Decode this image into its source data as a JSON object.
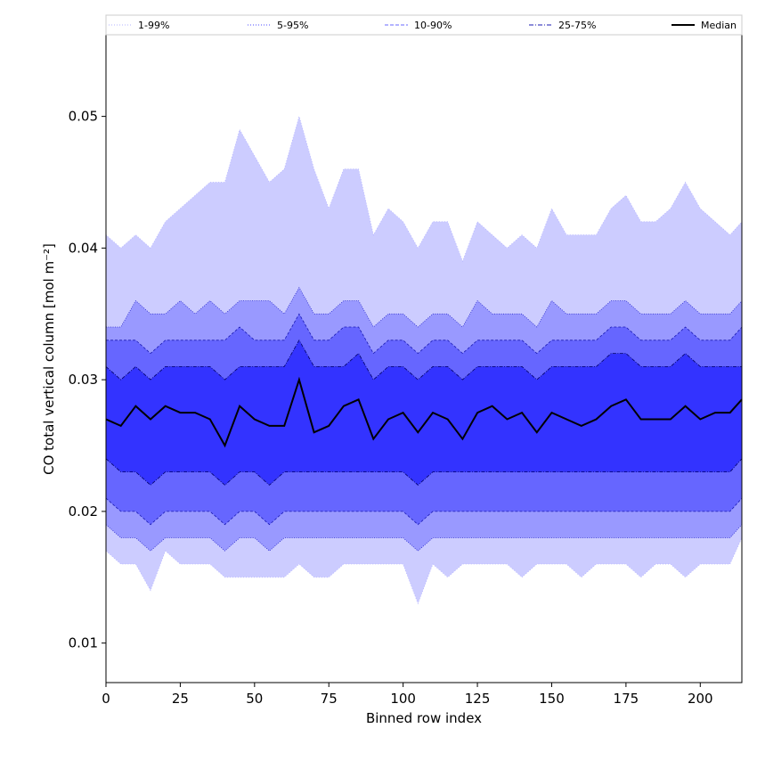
{
  "chart_data": {
    "type": "area",
    "title": "",
    "xlabel": "Binned row index",
    "ylabel": "CO total vertical column [mol m⁻²]",
    "xlim": [
      0,
      214
    ],
    "ylim": [
      0.007,
      0.0562
    ],
    "xticks": [
      0,
      25,
      50,
      75,
      100,
      125,
      150,
      175,
      200
    ],
    "yticks": [
      0.01,
      0.02,
      0.03,
      0.04,
      0.05
    ],
    "ytick_labels": [
      "0.01",
      "0.02",
      "0.03",
      "0.04",
      "0.05"
    ],
    "grid": false,
    "legend": {
      "placement": "top",
      "entries": [
        {
          "label": "1-99%",
          "style": "dotted",
          "color": "#b3b3ff"
        },
        {
          "label": "5-95%",
          "style": "dotted",
          "color": "#4d4dff"
        },
        {
          "label": "10-90%",
          "style": "dashed",
          "color": "#6a6aff"
        },
        {
          "label": "25-75%",
          "style": "dashdot",
          "color": "#1a1ab3"
        },
        {
          "label": "Median",
          "style": "solid",
          "color": "#000000"
        }
      ]
    },
    "colors": {
      "band_1_99": "#ccccff",
      "band_5_95": "#9999ff",
      "band_10_90": "#6666ff",
      "band_25_75": "#3333ff",
      "median": "#000000"
    },
    "x": [
      0,
      5,
      10,
      15,
      20,
      25,
      30,
      35,
      40,
      45,
      50,
      55,
      60,
      65,
      70,
      75,
      80,
      85,
      90,
      95,
      100,
      105,
      110,
      115,
      120,
      125,
      130,
      135,
      140,
      145,
      150,
      155,
      160,
      165,
      170,
      175,
      180,
      185,
      190,
      195,
      200,
      205,
      210,
      214
    ],
    "series": [
      {
        "name": "1-99%",
        "upper": [
          0.041,
          0.04,
          0.041,
          0.04,
          0.042,
          0.043,
          0.044,
          0.045,
          0.045,
          0.049,
          0.047,
          0.045,
          0.046,
          0.05,
          0.046,
          0.043,
          0.046,
          0.046,
          0.041,
          0.043,
          0.042,
          0.04,
          0.042,
          0.042,
          0.039,
          0.042,
          0.041,
          0.04,
          0.041,
          0.04,
          0.043,
          0.041,
          0.041,
          0.041,
          0.043,
          0.044,
          0.042,
          0.042,
          0.043,
          0.045,
          0.043,
          0.042,
          0.041,
          0.042
        ],
        "lower": [
          0.017,
          0.016,
          0.016,
          0.014,
          0.017,
          0.016,
          0.016,
          0.016,
          0.015,
          0.015,
          0.015,
          0.015,
          0.015,
          0.016,
          0.015,
          0.015,
          0.016,
          0.016,
          0.016,
          0.016,
          0.016,
          0.013,
          0.016,
          0.015,
          0.016,
          0.016,
          0.016,
          0.016,
          0.015,
          0.016,
          0.016,
          0.016,
          0.015,
          0.016,
          0.016,
          0.016,
          0.015,
          0.016,
          0.016,
          0.015,
          0.016,
          0.016,
          0.016,
          0.018
        ]
      },
      {
        "name": "5-95%",
        "upper": [
          0.034,
          0.034,
          0.036,
          0.035,
          0.035,
          0.036,
          0.035,
          0.036,
          0.035,
          0.036,
          0.036,
          0.036,
          0.035,
          0.037,
          0.035,
          0.035,
          0.036,
          0.036,
          0.034,
          0.035,
          0.035,
          0.034,
          0.035,
          0.035,
          0.034,
          0.036,
          0.035,
          0.035,
          0.035,
          0.034,
          0.036,
          0.035,
          0.035,
          0.035,
          0.036,
          0.036,
          0.035,
          0.035,
          0.035,
          0.036,
          0.035,
          0.035,
          0.035,
          0.036
        ],
        "lower": [
          0.019,
          0.018,
          0.018,
          0.017,
          0.018,
          0.018,
          0.018,
          0.018,
          0.017,
          0.018,
          0.018,
          0.017,
          0.018,
          0.018,
          0.018,
          0.018,
          0.018,
          0.018,
          0.018,
          0.018,
          0.018,
          0.017,
          0.018,
          0.018,
          0.018,
          0.018,
          0.018,
          0.018,
          0.018,
          0.018,
          0.018,
          0.018,
          0.018,
          0.018,
          0.018,
          0.018,
          0.018,
          0.018,
          0.018,
          0.018,
          0.018,
          0.018,
          0.018,
          0.019
        ]
      },
      {
        "name": "10-90%",
        "upper": [
          0.033,
          0.033,
          0.033,
          0.032,
          0.033,
          0.033,
          0.033,
          0.033,
          0.033,
          0.034,
          0.033,
          0.033,
          0.033,
          0.035,
          0.033,
          0.033,
          0.034,
          0.034,
          0.032,
          0.033,
          0.033,
          0.032,
          0.033,
          0.033,
          0.032,
          0.033,
          0.033,
          0.033,
          0.033,
          0.032,
          0.033,
          0.033,
          0.033,
          0.033,
          0.034,
          0.034,
          0.033,
          0.033,
          0.033,
          0.034,
          0.033,
          0.033,
          0.033,
          0.034
        ],
        "lower": [
          0.021,
          0.02,
          0.02,
          0.019,
          0.02,
          0.02,
          0.02,
          0.02,
          0.019,
          0.02,
          0.02,
          0.019,
          0.02,
          0.02,
          0.02,
          0.02,
          0.02,
          0.02,
          0.02,
          0.02,
          0.02,
          0.019,
          0.02,
          0.02,
          0.02,
          0.02,
          0.02,
          0.02,
          0.02,
          0.02,
          0.02,
          0.02,
          0.02,
          0.02,
          0.02,
          0.02,
          0.02,
          0.02,
          0.02,
          0.02,
          0.02,
          0.02,
          0.02,
          0.021
        ]
      },
      {
        "name": "25-75%",
        "upper": [
          0.031,
          0.03,
          0.031,
          0.03,
          0.031,
          0.031,
          0.031,
          0.031,
          0.03,
          0.031,
          0.031,
          0.031,
          0.031,
          0.033,
          0.031,
          0.031,
          0.031,
          0.032,
          0.03,
          0.031,
          0.031,
          0.03,
          0.031,
          0.031,
          0.03,
          0.031,
          0.031,
          0.031,
          0.031,
          0.03,
          0.031,
          0.031,
          0.031,
          0.031,
          0.032,
          0.032,
          0.031,
          0.031,
          0.031,
          0.032,
          0.031,
          0.031,
          0.031,
          0.031
        ],
        "lower": [
          0.024,
          0.023,
          0.023,
          0.022,
          0.023,
          0.023,
          0.023,
          0.023,
          0.022,
          0.023,
          0.023,
          0.022,
          0.023,
          0.023,
          0.023,
          0.023,
          0.023,
          0.023,
          0.023,
          0.023,
          0.023,
          0.022,
          0.023,
          0.023,
          0.023,
          0.023,
          0.023,
          0.023,
          0.023,
          0.023,
          0.023,
          0.023,
          0.023,
          0.023,
          0.023,
          0.023,
          0.023,
          0.023,
          0.023,
          0.023,
          0.023,
          0.023,
          0.023,
          0.024
        ]
      },
      {
        "name": "Median",
        "values": [
          0.027,
          0.0265,
          0.028,
          0.027,
          0.028,
          0.0275,
          0.0275,
          0.027,
          0.025,
          0.028,
          0.027,
          0.0265,
          0.0265,
          0.03,
          0.026,
          0.0265,
          0.028,
          0.0285,
          0.0255,
          0.027,
          0.0275,
          0.026,
          0.0275,
          0.027,
          0.0255,
          0.0275,
          0.028,
          0.027,
          0.0275,
          0.026,
          0.0275,
          0.027,
          0.0265,
          0.027,
          0.028,
          0.0285,
          0.027,
          0.027,
          0.027,
          0.028,
          0.027,
          0.0275,
          0.0275,
          0.0285
        ]
      }
    ]
  }
}
